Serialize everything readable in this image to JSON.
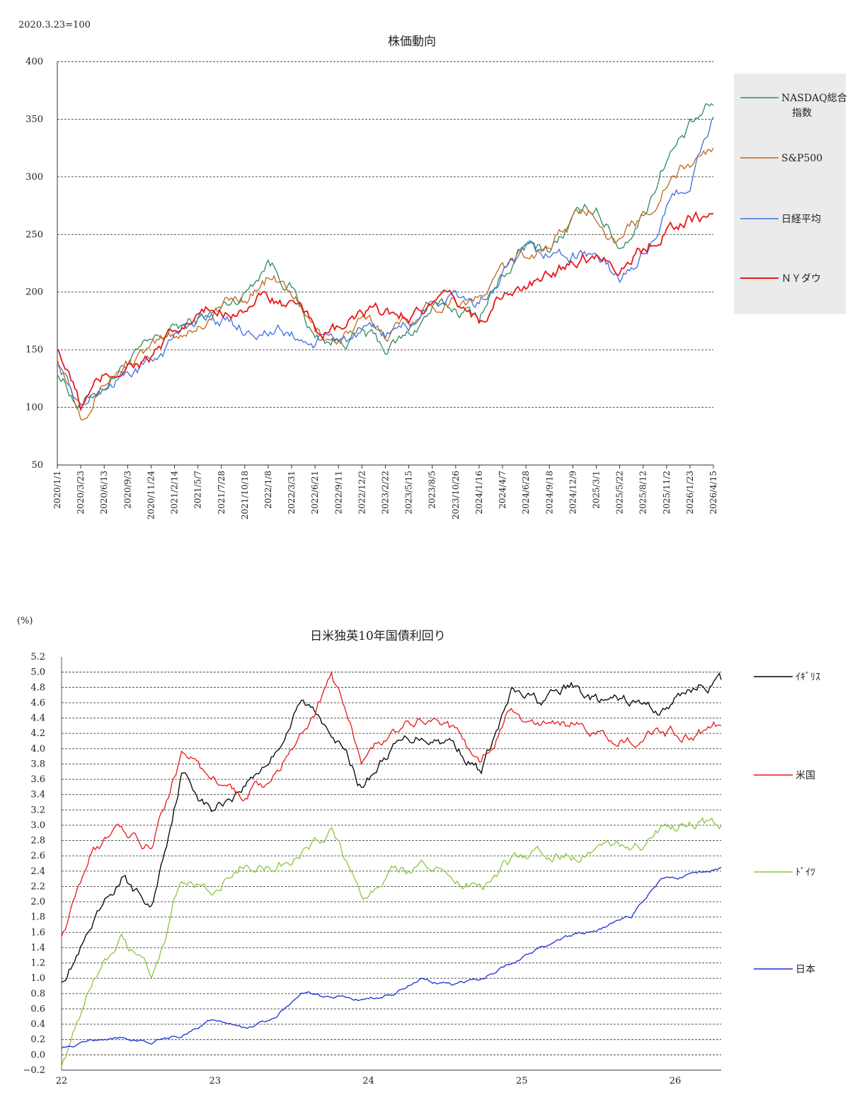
{
  "chart_data": [
    {
      "type": "line",
      "title": "株価動向",
      "note": "2020.3.23=100",
      "ylim": [
        50,
        400
      ],
      "yticks": [
        50,
        100,
        150,
        200,
        250,
        300,
        350,
        400
      ],
      "grid": true,
      "legend": "right",
      "x": [
        "2020/1/1",
        "2020/3/23",
        "2020/6/13",
        "2020/9/3",
        "2020/11/24",
        "2021/2/14",
        "2021/5/7",
        "2021/7/28",
        "2021/10/18",
        "2022/1/8",
        "2022/3/31",
        "2022/6/21",
        "2022/9/11",
        "2022/12/2",
        "2023/2/22",
        "2023/5/15",
        "2023/8/5",
        "2023/10/26",
        "2024/1/16",
        "2024/4/7",
        "2024/6/28",
        "2024/9/18",
        "2024/12/9",
        "2025/3/1",
        "2025/5/22",
        "2025/8/12",
        "2025/11/2",
        "2026/1/23",
        "2026/4/15"
      ],
      "series": [
        {
          "name": "NASDAQ総合指数",
          "color": "#2e8b57",
          "values": [
            133,
            100,
            121,
            140,
            152,
            168,
            175,
            185,
            200,
            230,
            205,
            160,
            158,
            165,
            150,
            162,
            185,
            185,
            180,
            214,
            238,
            238,
            260,
            275,
            240,
            268,
            318,
            340,
            362
          ]
        },
        {
          "name": "S&P500",
          "color": "#c0661a",
          "values": [
            146,
            100,
            123,
            140,
            148,
            162,
            172,
            188,
            196,
            212,
            200,
            164,
            160,
            172,
            165,
            176,
            190,
            197,
            192,
            218,
            233,
            243,
            262,
            270,
            242,
            265,
            296,
            310,
            325
          ]
        },
        {
          "name": "日経平均",
          "color": "#3a6fe0",
          "values": [
            140,
            100,
            118,
            130,
            138,
            160,
            180,
            176,
            168,
            168,
            162,
            155,
            160,
            160,
            162,
            170,
            192,
            194,
            190,
            212,
            228,
            232,
            232,
            234,
            208,
            232,
            272,
            295,
            352
          ]
        },
        {
          "name": "ＮＹダウ",
          "color": "#e81818",
          "values": [
            155,
            100,
            125,
            138,
            143,
            160,
            178,
            185,
            190,
            195,
            185,
            168,
            165,
            180,
            180,
            182,
            188,
            188,
            176,
            200,
            202,
            212,
            230,
            235,
            225,
            237,
            258,
            264,
            268
          ]
        }
      ]
    },
    {
      "type": "line",
      "title": "日米独英10年国債利回り",
      "note": "(%)",
      "ylim": [
        -0.2,
        5.2
      ],
      "yticks": [
        "5.2",
        "5.0",
        "4.8",
        "4.6",
        "4.4",
        "4.2",
        "4.0",
        "3.8",
        "3.6",
        "3.4",
        "3.2",
        "3.0",
        "2.8",
        "2.6",
        "2.4",
        "2.2",
        "2.0",
        "1.8",
        "1.6",
        "1.4",
        "1.2",
        "1.0",
        "0.8",
        "0.6",
        "0.4",
        "0.2",
        "0.0",
        "−0.2"
      ],
      "xticks": [
        "22",
        "23",
        "24",
        "25",
        "26"
      ],
      "grid": true,
      "legend": "right",
      "x": [
        22.0,
        22.2,
        22.4,
        22.6,
        22.8,
        23.0,
        23.2,
        23.4,
        23.6,
        23.8,
        24.0,
        24.2,
        24.4,
        24.6,
        24.8,
        25.0,
        25.2,
        25.4,
        25.6,
        25.8,
        26.0,
        26.2,
        26.3
      ],
      "series": [
        {
          "name": "ｲｷﾞﾘｽ",
          "color": "#000000",
          "values": [
            1.0,
            1.6,
            2.3,
            1.9,
            3.7,
            3.2,
            3.5,
            3.9,
            4.6,
            4.3,
            3.5,
            4.0,
            4.2,
            4.1,
            3.7,
            4.7,
            4.6,
            4.8,
            4.6,
            4.6,
            4.5,
            4.8,
            4.9
          ]
        },
        {
          "name": "米国",
          "color": "#e81818",
          "values": [
            1.6,
            2.6,
            3.0,
            2.7,
            3.9,
            3.6,
            3.4,
            3.6,
            4.2,
            4.9,
            3.9,
            4.2,
            4.4,
            4.2,
            3.8,
            4.5,
            4.3,
            4.3,
            4.2,
            4.1,
            4.2,
            4.2,
            4.3
          ]
        },
        {
          "name": "ﾄﾞｲﾂ",
          "color": "#8cc63f",
          "values": [
            -0.1,
            0.9,
            1.5,
            1.0,
            2.3,
            2.2,
            2.5,
            2.4,
            2.6,
            2.9,
            2.0,
            2.4,
            2.5,
            2.3,
            2.2,
            2.5,
            2.7,
            2.6,
            2.7,
            2.7,
            2.9,
            3.0,
            3.0
          ]
        },
        {
          "name": "日本",
          "color": "#1c2fd8",
          "values": [
            0.1,
            0.2,
            0.25,
            0.2,
            0.25,
            0.45,
            0.35,
            0.45,
            0.8,
            0.75,
            0.7,
            0.8,
            1.0,
            0.9,
            1.0,
            1.2,
            1.4,
            1.55,
            1.65,
            1.8,
            2.3,
            2.35,
            2.45
          ]
        }
      ]
    }
  ]
}
